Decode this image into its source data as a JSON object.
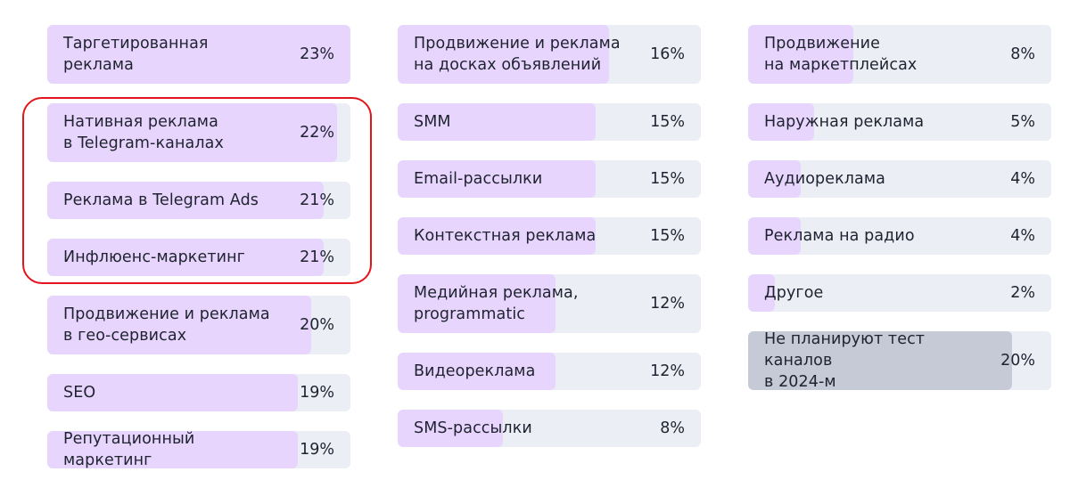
{
  "chart_data": {
    "type": "bar",
    "orientation": "horizontal",
    "unit": "%",
    "xlim": [
      0,
      23
    ],
    "highlight_color": "#e2151c",
    "bar_color": "#e7d5fd",
    "track_color": "#eceef6",
    "other_bar_color": "#c6cad6",
    "highlighted_indices": [
      1,
      2,
      3
    ],
    "columns": [
      {
        "items": [
          {
            "label": "Таргетированная\nреклама",
            "value": 23,
            "value_label": "23%"
          },
          {
            "label": "Нативная реклама\nв Telegram-каналах",
            "value": 22,
            "value_label": "22%"
          },
          {
            "label": "Реклама в Telegram Ads",
            "value": 21,
            "value_label": "21%"
          },
          {
            "label": "Инфлюенс-маркетинг",
            "value": 21,
            "value_label": "21%"
          },
          {
            "label": "Продвижение и реклама\nв гео-сервисах",
            "value": 20,
            "value_label": "20%"
          },
          {
            "label": "SEO",
            "value": 19,
            "value_label": "19%"
          },
          {
            "label": "Репутационный маркетинг",
            "value": 19,
            "value_label": "19%"
          }
        ]
      },
      {
        "items": [
          {
            "label": "Продвижение и реклама\nна досках объявлений",
            "value": 16,
            "value_label": "16%"
          },
          {
            "label": "SMM",
            "value": 15,
            "value_label": "15%"
          },
          {
            "label": "Email-рассылки",
            "value": 15,
            "value_label": "15%"
          },
          {
            "label": "Контекстная реклама",
            "value": 15,
            "value_label": "15%"
          },
          {
            "label": "Медийная реклама,\nprogrammatic",
            "value": 12,
            "value_label": "12%"
          },
          {
            "label": "Видеореклама",
            "value": 12,
            "value_label": "12%"
          },
          {
            "label": "SMS-рассылки",
            "value": 8,
            "value_label": "8%"
          }
        ]
      },
      {
        "items": [
          {
            "label": "Продвижение\nна маркетплейсах",
            "value": 8,
            "value_label": "8%"
          },
          {
            "label": "Наружная реклама",
            "value": 5,
            "value_label": "5%"
          },
          {
            "label": "Аудиореклама",
            "value": 4,
            "value_label": "4%"
          },
          {
            "label": "Реклама на радио",
            "value": 4,
            "value_label": "4%"
          },
          {
            "label": "Другое",
            "value": 2,
            "value_label": "2%"
          },
          {
            "label": "Не планируют тест каналов\nв 2024-м",
            "value": 20,
            "value_label": "20%",
            "style": "gray"
          }
        ]
      }
    ]
  }
}
